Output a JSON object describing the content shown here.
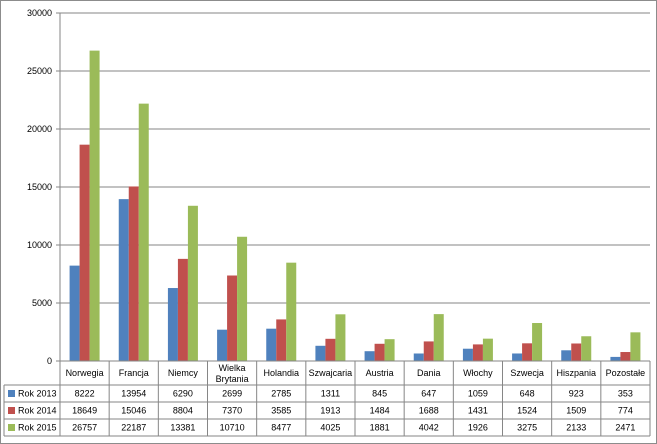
{
  "chart_data": {
    "type": "bar",
    "categories": [
      "Norwegia",
      "Francja",
      "Niemcy",
      "Wielka Brytania",
      "Holandia",
      "Szwajcaria",
      "Austria",
      "Dania",
      "Włochy",
      "Szwecja",
      "Hiszpania",
      "Pozostałe"
    ],
    "series": [
      {
        "name": "Rok 2013",
        "color": "#4f81bd",
        "values": [
          8222,
          13954,
          6290,
          2699,
          2785,
          1311,
          845,
          647,
          1059,
          648,
          923,
          353
        ]
      },
      {
        "name": "Rok 2014",
        "color": "#c0504d",
        "values": [
          18649,
          15046,
          8804,
          7370,
          3585,
          1913,
          1484,
          1688,
          1431,
          1524,
          1509,
          774
        ]
      },
      {
        "name": "Rok 2015",
        "color": "#9bbb59",
        "values": [
          26757,
          22187,
          13381,
          10710,
          8477,
          4025,
          1881,
          4042,
          1926,
          3275,
          2133,
          2471
        ]
      }
    ],
    "yticks": [
      "0",
      "5000",
      "10000",
      "15000",
      "20000",
      "25000",
      "30000"
    ],
    "ylim": [
      0,
      30000
    ],
    "grid": true,
    "legend": "data-table-rows",
    "title": "",
    "xlabel": "",
    "ylabel": ""
  }
}
